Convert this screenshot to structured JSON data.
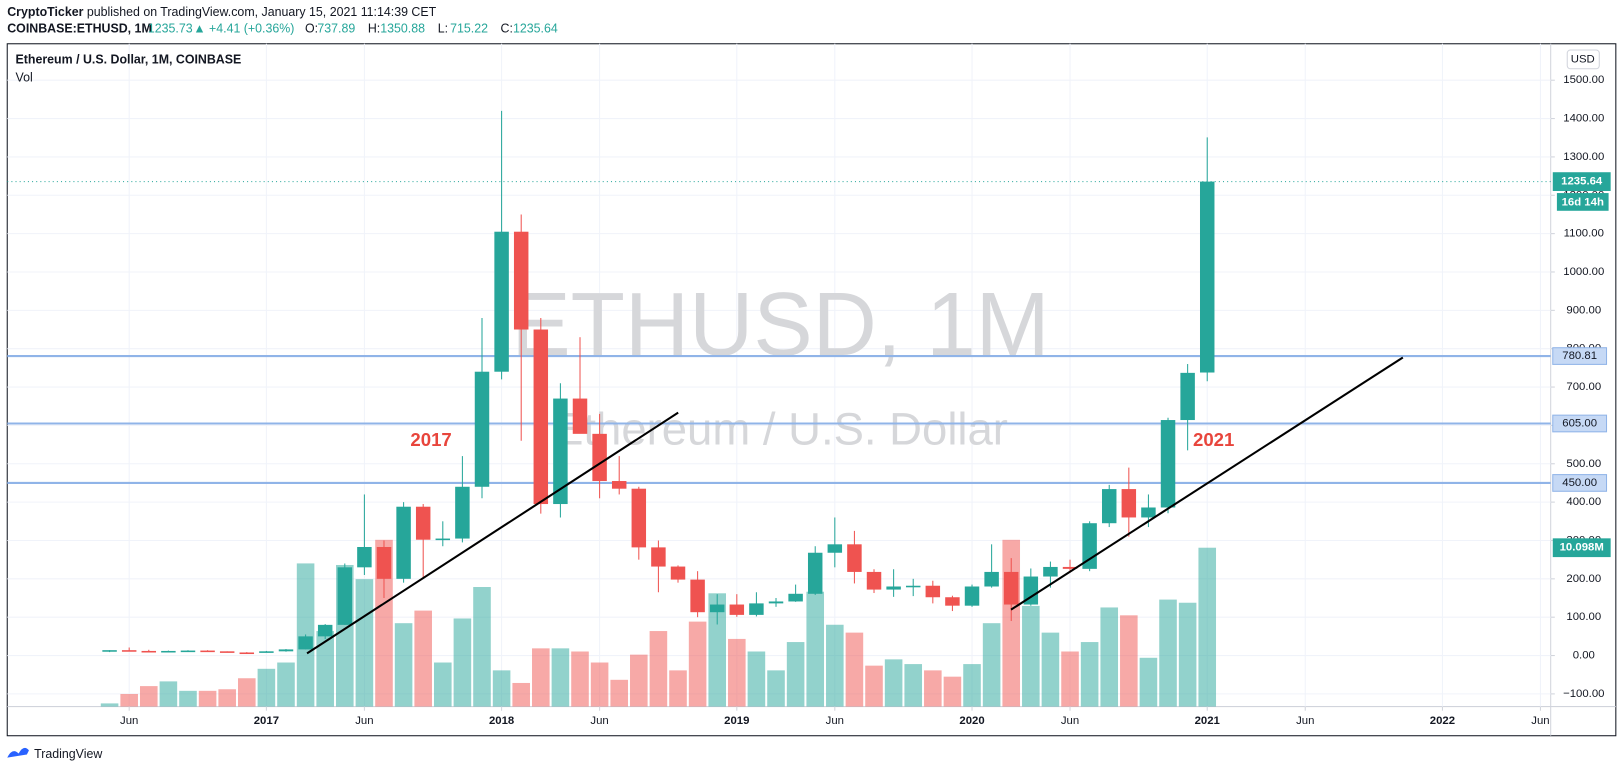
{
  "header": {
    "author": "CryptoTicker",
    "published": "published on TradingView.com, January 15, 2021 11:14:39 CET",
    "symbol": "COINBASE:ETHUSD, 1M",
    "last": "1235.73",
    "change": "▲ +4.41 (+0.36%)",
    "quote": [
      {
        "label": "O:",
        "value": "737.89"
      },
      {
        "label": "H:",
        "value": "1350.88"
      },
      {
        "label": "L:",
        "value": "715.22"
      },
      {
        "label": "C:",
        "value": "1235.64"
      }
    ],
    "footer": "TradingView"
  },
  "chart_data": {
    "type": "candlestick",
    "legend_title": "Ethereum / U.S. Dollar, 1M, COINBASE",
    "volume_name": "Vol",
    "watermark": "ETHUSD, 1M",
    "watermark_subtitle": "Ethereum / U.S. Dollar",
    "currency": "USD",
    "countdown": "16d 14h",
    "volume_last_label": "10.098M",
    "up_color": "#26a69a",
    "down_color": "#ef5350",
    "x": [
      "2016-05",
      "2016-06",
      "2016-07",
      "2016-08",
      "2016-09",
      "2016-10",
      "2016-11",
      "2016-12",
      "2017-01",
      "2017-02",
      "2017-03",
      "2017-04",
      "2017-05",
      "2017-06",
      "2017-07",
      "2017-08",
      "2017-09",
      "2017-10",
      "2017-11",
      "2017-12",
      "2018-01",
      "2018-02",
      "2018-03",
      "2018-04",
      "2018-05",
      "2018-06",
      "2018-07",
      "2018-08",
      "2018-09",
      "2018-10",
      "2018-11",
      "2018-12",
      "2019-01",
      "2019-02",
      "2019-03",
      "2019-04",
      "2019-05",
      "2019-06",
      "2019-07",
      "2019-08",
      "2019-09",
      "2019-10",
      "2019-11",
      "2019-12",
      "2020-01",
      "2020-02",
      "2020-03",
      "2020-04",
      "2020-05",
      "2020-06",
      "2020-07",
      "2020-08",
      "2020-09",
      "2020-10",
      "2020-11",
      "2020-12",
      "2021-01"
    ],
    "open": [
      10,
      14,
      12,
      11,
      12,
      13,
      11,
      8,
      8,
      11,
      16,
      50,
      80,
      230,
      283,
      200,
      388,
      302,
      305,
      440,
      740,
      1105,
      850,
      395,
      670,
      578,
      455,
      435,
      282,
      232,
      198,
      113,
      133,
      106,
      136,
      141,
      161,
      268,
      290,
      218,
      172,
      180,
      182,
      152,
      130,
      180,
      218,
      133,
      206,
      231,
      226,
      345,
      434,
      360,
      386,
      614,
      737.89
    ],
    "high": [
      14,
      21,
      15,
      13,
      14,
      14,
      11,
      9,
      12,
      17,
      55,
      82,
      240,
      420,
      300,
      400,
      395,
      350,
      520,
      880,
      1420,
      1150,
      880,
      710,
      830,
      630,
      520,
      440,
      300,
      235,
      220,
      160,
      160,
      165,
      150,
      185,
      285,
      360,
      325,
      225,
      225,
      200,
      195,
      156,
      185,
      290,
      254,
      227,
      245,
      250,
      350,
      445,
      490,
      420,
      620,
      760,
      1350.88
    ],
    "low": [
      9,
      11,
      10,
      10,
      11,
      11,
      8,
      6,
      8,
      10,
      16,
      43,
      80,
      210,
      150,
      190,
      200,
      285,
      295,
      410,
      720,
      560,
      370,
      360,
      580,
      410,
      420,
      250,
      165,
      190,
      100,
      81,
      101,
      102,
      127,
      140,
      158,
      230,
      188,
      163,
      153,
      155,
      136,
      116,
      127,
      177,
      90,
      130,
      177,
      216,
      220,
      335,
      310,
      335,
      371,
      535,
      715.22
    ],
    "close": [
      14,
      12,
      11,
      12,
      13,
      11,
      8,
      7.9,
      11,
      16,
      50,
      80,
      230,
      283,
      200,
      388,
      302,
      305,
      440,
      740,
      1105,
      850,
      395,
      670,
      578,
      455,
      435,
      282,
      232,
      198,
      113,
      133,
      106,
      136,
      141,
      161,
      268,
      290,
      218,
      172,
      180,
      182,
      152,
      130,
      180,
      218,
      133,
      206,
      231,
      226,
      345,
      434,
      360,
      386,
      614,
      737,
      1235.64
    ],
    "volume": [
      0.2,
      0.8,
      1.3,
      1.6,
      1.0,
      1.0,
      1.1,
      1.8,
      2.4,
      2.8,
      9.1,
      4.8,
      9.0,
      8.1,
      10.6,
      5.3,
      6.1,
      2.8,
      5.6,
      7.6,
      2.3,
      1.5,
      3.7,
      3.7,
      3.5,
      2.8,
      1.7,
      3.3,
      4.8,
      2.3,
      5.4,
      7.2,
      4.3,
      3.5,
      2.3,
      4.1,
      7.3,
      5.2,
      4.7,
      2.6,
      3.0,
      2.7,
      2.3,
      1.9,
      2.7,
      5.3,
      10.6,
      6.4,
      4.7,
      3.5,
      4.1,
      6.3,
      5.8,
      3.1,
      6.8,
      6.6,
      10.098
    ],
    "ylim": [
      -133,
      1595
    ],
    "yticks": [
      {
        "value": -100,
        "label": "−100.00"
      },
      {
        "value": 0,
        "label": "0.00"
      },
      {
        "value": 100,
        "label": "100.00"
      },
      {
        "value": 200,
        "label": "200.00"
      },
      {
        "value": 300,
        "label": "300.00"
      },
      {
        "value": 400,
        "label": "400.00"
      },
      {
        "value": 500,
        "label": "500.00"
      },
      {
        "value": 600,
        "label": "600.00"
      },
      {
        "value": 700,
        "label": "700.00"
      },
      {
        "value": 800,
        "label": "800.00"
      },
      {
        "value": 900,
        "label": "900.00"
      },
      {
        "value": 1000,
        "label": "1000.00"
      },
      {
        "value": 1100,
        "label": "1100.00"
      },
      {
        "value": 1200,
        "label": "1200.00"
      },
      {
        "value": 1300,
        "label": "1300.00"
      },
      {
        "value": 1400,
        "label": "1400.00"
      },
      {
        "value": 1500,
        "label": "1500.00"
      }
    ],
    "xticks": [
      {
        "value": "2016-06",
        "label": "Jun"
      },
      {
        "value": "2017-01",
        "label": "2017"
      },
      {
        "value": "2017-06",
        "label": "Jun"
      },
      {
        "value": "2018-01",
        "label": "2018"
      },
      {
        "value": "2018-06",
        "label": "Jun"
      },
      {
        "value": "2019-01",
        "label": "2019"
      },
      {
        "value": "2019-06",
        "label": "Jun"
      },
      {
        "value": "2020-01",
        "label": "2020"
      },
      {
        "value": "2020-06",
        "label": "Jun"
      },
      {
        "value": "2021-01",
        "label": "2021"
      },
      {
        "value": "2021-06",
        "label": "Jun"
      },
      {
        "value": "2022-01",
        "label": "2022"
      },
      {
        "value": "2022-06",
        "label": "Jun"
      }
    ],
    "levels": [
      780.81,
      {
        "value": 605,
        "label": "605.00"
      },
      {
        "value": 450,
        "label": "450.00"
      }
    ],
    "level_color": "#90b4e8",
    "annotations": [
      {
        "text": "2017"
      },
      {
        "text": "2021"
      }
    ],
    "annotation_color": "#e8453c",
    "grid": true
  }
}
